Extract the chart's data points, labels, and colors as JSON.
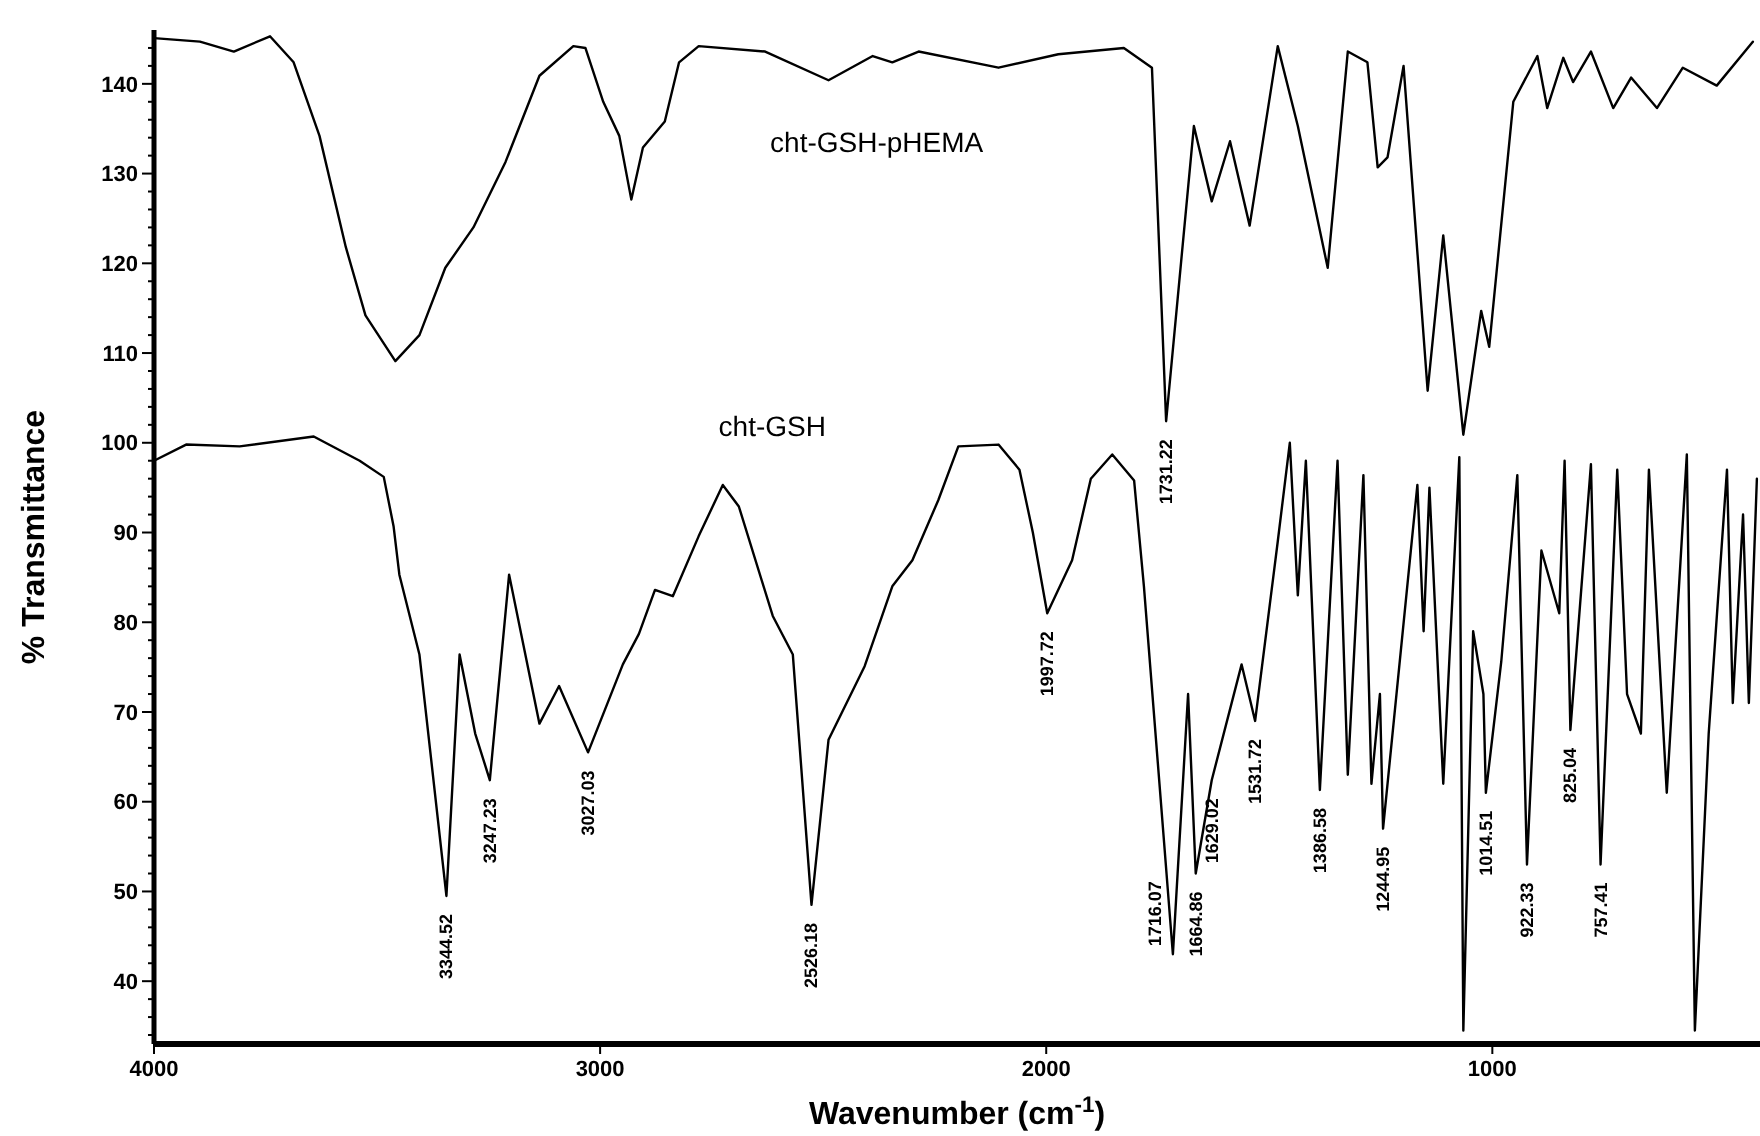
{
  "chart_data": {
    "type": "line",
    "xlabel": "Wavenumber (cm$^{-1}$)",
    "ylabel": "% Transmittance",
    "xlim": [
      4000,
      400
    ],
    "xticks": [
      4000,
      3000,
      2000,
      1000
    ],
    "ylim": [
      33,
      146
    ],
    "yticks": [
      {
        "value": 34,
        "label": null
      },
      {
        "value": 36,
        "label": null
      },
      {
        "value": 38,
        "label": null
      },
      40,
      {
        "value": 42,
        "label": null
      },
      {
        "value": 44,
        "label": null
      },
      {
        "value": 46,
        "label": null
      },
      {
        "value": 48,
        "label": null
      },
      50,
      {
        "value": 52,
        "label": null
      },
      {
        "value": 54,
        "label": null
      },
      {
        "value": 56,
        "label": null
      },
      {
        "value": 58,
        "label": null
      },
      60,
      {
        "value": 62,
        "label": null
      },
      {
        "value": 64,
        "label": null
      },
      {
        "value": 66,
        "label": null
      },
      {
        "value": 68,
        "label": null
      },
      70,
      {
        "value": 72,
        "label": null
      },
      {
        "value": 74,
        "label": null
      },
      {
        "value": 76,
        "label": null
      },
      {
        "value": 78,
        "label": null
      },
      80,
      {
        "value": 82,
        "label": null
      },
      {
        "value": 84,
        "label": null
      },
      {
        "value": 86,
        "label": null
      },
      {
        "value": 88,
        "label": null
      },
      90,
      {
        "value": 92,
        "label": null
      },
      {
        "value": 94,
        "label": null
      },
      {
        "value": 96,
        "label": null
      },
      {
        "value": 98,
        "label": null
      },
      100,
      {
        "value": 102,
        "label": null
      },
      {
        "value": 104,
        "label": null
      },
      {
        "value": 106,
        "label": null
      },
      {
        "value": 108,
        "label": null
      },
      110,
      {
        "value": 112,
        "label": null
      },
      {
        "value": 114,
        "label": null
      },
      {
        "value": 116,
        "label": null
      },
      {
        "value": 118,
        "label": null
      },
      120,
      {
        "value": 122,
        "label": null
      },
      {
        "value": 124,
        "label": null
      },
      {
        "value": 126,
        "label": null
      },
      {
        "value": 128,
        "label": null
      },
      130,
      {
        "value": 132,
        "label": null
      },
      {
        "value": 134,
        "label": null
      },
      {
        "value": 136,
        "label": null
      },
      {
        "value": 138,
        "label": null
      },
      140,
      {
        "value": 142,
        "label": null
      },
      {
        "value": 144,
        "label": null
      }
    ],
    "grid": false,
    "marker": "none",
    "line_style": "solid",
    "series": [
      {
        "name": "cht-GSH-pHEMA",
        "color": "#000000",
        "x": [
          4000,
          3897,
          3821,
          3740,
          3687,
          3629,
          3570,
          3526,
          3459,
          3405,
          3347,
          3284,
          3212,
          3136,
          3060,
          3033,
          2993,
          2957,
          2930,
          2904,
          2855,
          2823,
          2779,
          2630,
          2488,
          2389,
          2345,
          2286,
          2107,
          1973,
          1826,
          1763,
          1731.22,
          1669,
          1629,
          1588,
          1544,
          1481,
          1436,
          1369,
          1324,
          1280,
          1257,
          1235,
          1199,
          1145,
          1110,
          1065,
          1025,
          1007,
          953,
          899,
          877,
          841,
          819,
          779,
          729,
          689,
          631,
          573,
          497,
          416
        ],
        "values": [
          145.1,
          144.7,
          143.6,
          145.3,
          142.4,
          134.2,
          121.8,
          114.2,
          109.1,
          112,
          119.5,
          124,
          131.3,
          140.9,
          144.2,
          144,
          138,
          134.2,
          127.1,
          132.9,
          135.8,
          142.4,
          144.2,
          143.6,
          140.4,
          143.1,
          142.4,
          143.6,
          141.8,
          143.3,
          144,
          141.8,
          102.4,
          135.3,
          126.9,
          133.6,
          124.2,
          144.2,
          135.3,
          119.5,
          143.6,
          142.4,
          130.7,
          131.8,
          142,
          105.8,
          123.1,
          100.9,
          114.7,
          110.7,
          138,
          143.1,
          137.3,
          142.9,
          140.2,
          143.6,
          137.3,
          140.7,
          137.3,
          141.8,
          139.8,
          144.7
        ]
      },
      {
        "name": "cht-GSH",
        "color": "#000000",
        "x": [
          4000,
          3928,
          3808,
          3642,
          3539,
          3485,
          3463,
          3450,
          3405,
          3344.52,
          3315,
          3280,
          3247.23,
          3204,
          3136,
          3092,
          3027.03,
          2949,
          2913,
          2877,
          2837,
          2779,
          2725,
          2689,
          2613,
          2568,
          2526.18,
          2488,
          2407,
          2345,
          2300,
          2242,
          2197,
          2107,
          2060,
          2030,
          1997.72,
          1942,
          1900,
          1852,
          1803,
          1781,
          1716.07,
          1682,
          1664.86,
          1629.02,
          1562,
          1531.72,
          1481,
          1454,
          1436,
          1418,
          1386.58,
          1347,
          1324,
          1289,
          1271,
          1252,
          1244.95,
          1168,
          1154,
          1141,
          1110,
          1074,
          1065,
          1043,
          1020,
          1014.51,
          980,
          944,
          922.33,
          890,
          850,
          838,
          825.04,
          779,
          757.41,
          720,
          698,
          667,
          649,
          609,
          564,
          546,
          515,
          474,
          461,
          438,
          425,
          407
        ],
        "values": [
          98,
          99.8,
          99.6,
          100.7,
          98,
          96.2,
          90.7,
          85.3,
          76.4,
          49.5,
          76.4,
          67.6,
          62.4,
          85.3,
          68.7,
          72.9,
          65.5,
          75.3,
          78.7,
          83.6,
          82.9,
          89.6,
          95.3,
          92.9,
          80.7,
          76.4,
          48.5,
          66.9,
          75.1,
          84,
          86.9,
          93.6,
          99.6,
          99.8,
          97,
          90,
          81,
          86.9,
          96,
          98.7,
          95.8,
          84,
          43,
          72,
          52,
          62.4,
          75.3,
          69,
          89,
          100,
          83,
          98,
          61.3,
          98,
          63,
          96.4,
          62,
          72,
          57,
          95.3,
          79,
          95,
          62,
          98.4,
          34.5,
          79,
          72,
          61,
          75.6,
          96.4,
          53,
          88,
          81,
          98,
          68,
          97.6,
          53,
          97,
          72,
          67.6,
          97,
          61,
          98.7,
          34.5,
          67.6,
          97,
          71,
          92,
          71,
          96
        ]
      }
    ],
    "annotations": [
      {
        "text": "3344.52",
        "x": 3344.52,
        "y": 49.5
      },
      {
        "text": "3247.23",
        "x": 3247.23,
        "y": 62.4
      },
      {
        "text": "3027.03",
        "x": 3027.03,
        "y": 65.5
      },
      {
        "text": "2526.18",
        "x": 2526.18,
        "y": 48.5
      },
      {
        "text": "1997.72",
        "x": 1997.72,
        "y": 81
      },
      {
        "text": "1731.22",
        "x": 1731.22,
        "y": 102.4
      },
      {
        "text": "1716.07",
        "x": 1716.07,
        "y": 43
      },
      {
        "text": "1664.86",
        "x": 1664.86,
        "y": 52
      },
      {
        "text": "1629.02",
        "x": 1629.02,
        "y": 62.4
      },
      {
        "text": "1531.72",
        "x": 1531.72,
        "y": 69
      },
      {
        "text": "1386.58",
        "x": 1386.58,
        "y": 61.3
      },
      {
        "text": "1244.95",
        "x": 1244.95,
        "y": 57
      },
      {
        "text": "1014.51",
        "x": 1014.51,
        "y": 61
      },
      {
        "text": "922.33",
        "x": 922.33,
        "y": 53
      },
      {
        "text": "825.04",
        "x": 825.04,
        "y": 68
      },
      {
        "text": "757.41",
        "x": 757.41,
        "y": 53
      }
    ]
  }
}
